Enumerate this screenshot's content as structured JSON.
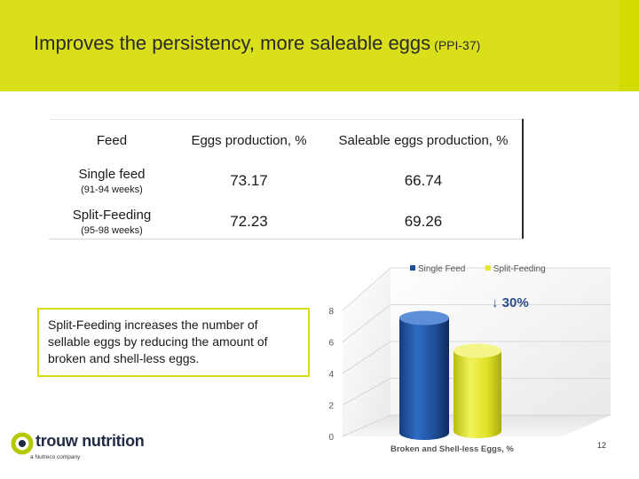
{
  "slide": {
    "title": "Improves the persistency, more saleable eggs",
    "title_suffix": "(PPI-37)",
    "page_number": "12"
  },
  "table": {
    "headers": [
      "Feed",
      "Eggs production, %",
      "Saleable eggs production, %"
    ],
    "rows": [
      {
        "feed": "Single feed",
        "weeks": "(91-94 weeks)",
        "eggs": "73.17",
        "saleable": "66.74"
      },
      {
        "feed": "Split-Feeding",
        "weeks": "(95-98 weeks)",
        "eggs": "72.23",
        "saleable": "69.26"
      }
    ]
  },
  "note": "Split-Feeding increases the number of sellable eggs by reducing the amount of broken and shell-less eggs.",
  "chart_data": {
    "type": "bar",
    "title": "",
    "xlabel": "Broken and Shell-less Eggs, %",
    "ylabel": "",
    "categories": [
      "Broken and Shell-less Eggs, %"
    ],
    "series": [
      {
        "name": "Single Feed",
        "values": [
          7.3
        ],
        "color": "#1f4f9a"
      },
      {
        "name": "Split-Feeding",
        "values": [
          5.1
        ],
        "color": "#e3e629"
      }
    ],
    "ylim": [
      0,
      8
    ],
    "yticks": [
      "0",
      "2",
      "4",
      "6",
      "8"
    ],
    "annotation": "↓ 30%",
    "annotation_color": "#2b4a8a",
    "legend_position": "top"
  },
  "logo": {
    "word": "trouw nutrition",
    "sub": "a Nutreco company"
  },
  "colors": {
    "header_band": "#d3dc00",
    "note_border": "#d6dc12"
  }
}
